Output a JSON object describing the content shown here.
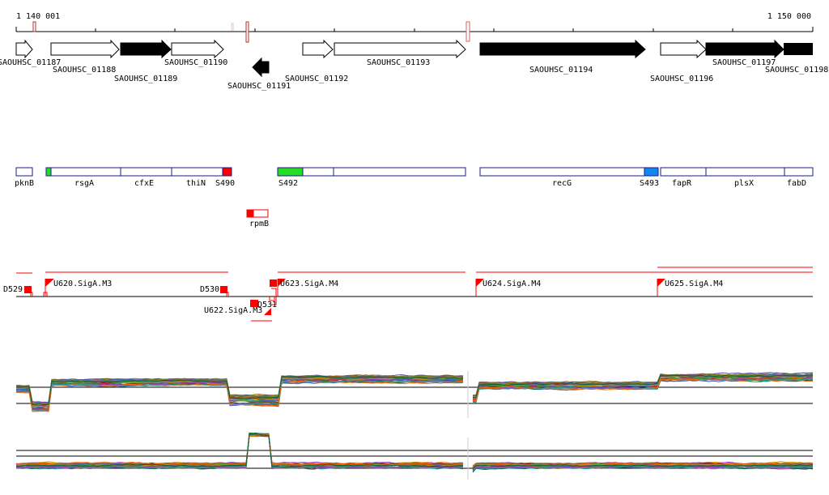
{
  "ruler": {
    "start_label": "1 140 001",
    "end_label": "1 150 000"
  },
  "colors": {
    "forward_gene": "#ffffff",
    "reverse_gene": "#000000",
    "feature_outline": "#1a1a8c",
    "red": "#ff0000",
    "green": "#22dd22",
    "blue": "#1188ee",
    "marker_outline": "#b03030"
  },
  "genes": [
    {
      "id": "SAOUHSC_01187",
      "strand": "forward"
    },
    {
      "id": "SAOUHSC_01188",
      "strand": "forward"
    },
    {
      "id": "SAOUHSC_01189",
      "strand": "reverse-fill"
    },
    {
      "id": "SAOUHSC_01190",
      "strand": "forward"
    },
    {
      "id": "SAOUHSC_01191",
      "strand": "reverse"
    },
    {
      "id": "SAOUHSC_01192",
      "strand": "forward"
    },
    {
      "id": "SAOUHSC_01193",
      "strand": "forward"
    },
    {
      "id": "SAOUHSC_01194",
      "strand": "reverse-fill"
    },
    {
      "id": "SAOUHSC_01196",
      "strand": "forward"
    },
    {
      "id": "SAOUHSC_01197",
      "strand": "reverse-fill"
    },
    {
      "id": "SAOUHSC_01198",
      "strand": "reverse-fill"
    }
  ],
  "features": [
    {
      "label": "pknB"
    },
    {
      "label": "rsgA"
    },
    {
      "label": "cfxE"
    },
    {
      "label": "thiN"
    },
    {
      "label": "S490"
    },
    {
      "label": "S492"
    },
    {
      "label": "recG"
    },
    {
      "label": "S493"
    },
    {
      "label": "fapR"
    },
    {
      "label": "plsX"
    },
    {
      "label": "fabD"
    },
    {
      "label": "rpmB"
    }
  ],
  "segments": [
    {
      "label": "D529"
    },
    {
      "label": "U620.SigA.M3"
    },
    {
      "label": "D530"
    },
    {
      "label": "D531"
    },
    {
      "label": "U622.SigA.M3"
    },
    {
      "label": "U623.SigA.M4"
    },
    {
      "label": "U624.SigA.M4"
    },
    {
      "label": "U625.SigA.M4"
    }
  ]
}
